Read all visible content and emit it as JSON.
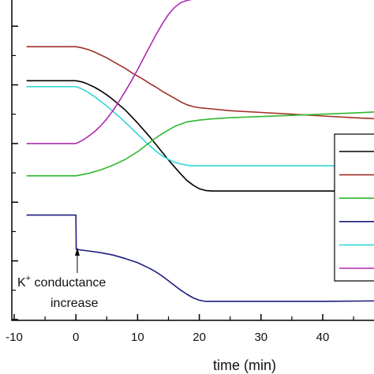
{
  "chart_data": {
    "type": "line",
    "xlabel": "time (min)",
    "x_ticks": [
      "-10",
      "0",
      "10",
      "20",
      "30",
      "40"
    ],
    "xlim": [
      -10,
      51
    ],
    "ylim": [
      0,
      5.5
    ],
    "grid": false,
    "legend_placement": "right",
    "annotation": {
      "lines": [
        "K+ conductance",
        "increase"
      ],
      "points_to": {
        "x": 0,
        "y": 1.2
      }
    },
    "series": [
      {
        "color": "#a03028",
        "x": [
          -8,
          0,
          1,
          2,
          3,
          4,
          5,
          6,
          7,
          8,
          9,
          10,
          11,
          12,
          13,
          14,
          15,
          16,
          17,
          18,
          19,
          20,
          22,
          25,
          30,
          35,
          40,
          45,
          51
        ],
        "values": [
          4.65,
          4.65,
          4.63,
          4.6,
          4.56,
          4.51,
          4.46,
          4.4,
          4.34,
          4.28,
          4.21,
          4.15,
          4.09,
          4.02,
          3.96,
          3.89,
          3.83,
          3.77,
          3.71,
          3.66,
          3.63,
          3.61,
          3.59,
          3.56,
          3.53,
          3.5,
          3.47,
          3.44,
          3.41
        ]
      },
      {
        "color": "#000000",
        "x": [
          -8,
          0,
          1,
          2,
          3,
          4,
          5,
          6,
          7,
          8,
          9,
          10,
          11,
          12,
          13,
          14,
          15,
          16,
          17,
          18,
          19,
          20,
          21,
          22,
          25,
          30,
          40,
          51
        ],
        "values": [
          4.07,
          4.07,
          4.05,
          4.01,
          3.96,
          3.9,
          3.83,
          3.75,
          3.66,
          3.57,
          3.46,
          3.35,
          3.23,
          3.11,
          2.98,
          2.85,
          2.72,
          2.6,
          2.48,
          2.37,
          2.29,
          2.23,
          2.2,
          2.19,
          2.19,
          2.19,
          2.19,
          2.19
        ]
      },
      {
        "color": "#33d6d6",
        "x": [
          -8,
          0,
          1,
          2,
          3,
          4,
          5,
          6,
          7,
          8,
          9,
          10,
          11,
          12,
          13,
          14,
          15,
          16,
          17,
          18,
          19,
          20,
          22,
          25,
          30,
          40,
          51
        ],
        "values": [
          3.97,
          3.97,
          3.93,
          3.87,
          3.8,
          3.72,
          3.64,
          3.55,
          3.46,
          3.36,
          3.26,
          3.16,
          3.06,
          2.96,
          2.87,
          2.79,
          2.73,
          2.68,
          2.65,
          2.63,
          2.62,
          2.62,
          2.62,
          2.62,
          2.62,
          2.62,
          2.62
        ]
      },
      {
        "color": "#2fb82f",
        "x": [
          -8,
          0,
          2,
          4,
          6,
          8,
          10,
          12,
          13,
          14,
          16,
          18,
          20,
          22,
          25,
          30,
          35,
          40,
          45,
          51
        ],
        "values": [
          2.45,
          2.45,
          2.49,
          2.55,
          2.63,
          2.73,
          2.86,
          3.02,
          3.1,
          3.17,
          3.29,
          3.37,
          3.4,
          3.42,
          3.44,
          3.46,
          3.48,
          3.5,
          3.52,
          3.55
        ]
      },
      {
        "color": "#b02ab0",
        "x": [
          -8,
          0,
          1,
          2,
          3,
          4,
          5,
          6,
          7,
          8,
          9,
          10,
          11,
          12,
          13,
          14,
          15,
          16,
          17,
          18,
          19,
          20,
          21,
          22,
          25,
          30,
          40,
          51
        ],
        "values": [
          3.0,
          3.0,
          3.05,
          3.12,
          3.2,
          3.3,
          3.42,
          3.56,
          3.72,
          3.89,
          4.07,
          4.26,
          4.46,
          4.66,
          4.86,
          5.04,
          5.2,
          5.32,
          5.4,
          5.44,
          5.46,
          5.47,
          5.47,
          5.47,
          5.47,
          5.47,
          5.47,
          5.47
        ]
      },
      {
        "color": "#1c1c7e",
        "x": [
          -8,
          0,
          0.05,
          0.5,
          2,
          4,
          6,
          8,
          10,
          12,
          13,
          14,
          15,
          16,
          17,
          18,
          19,
          20,
          21,
          22,
          25,
          30,
          40,
          51
        ],
        "values": [
          1.78,
          1.78,
          1.2,
          1.19,
          1.17,
          1.14,
          1.1,
          1.04,
          0.97,
          0.87,
          0.81,
          0.74,
          0.66,
          0.58,
          0.5,
          0.43,
          0.37,
          0.33,
          0.31,
          0.31,
          0.31,
          0.31,
          0.31,
          0.32
        ]
      }
    ]
  }
}
